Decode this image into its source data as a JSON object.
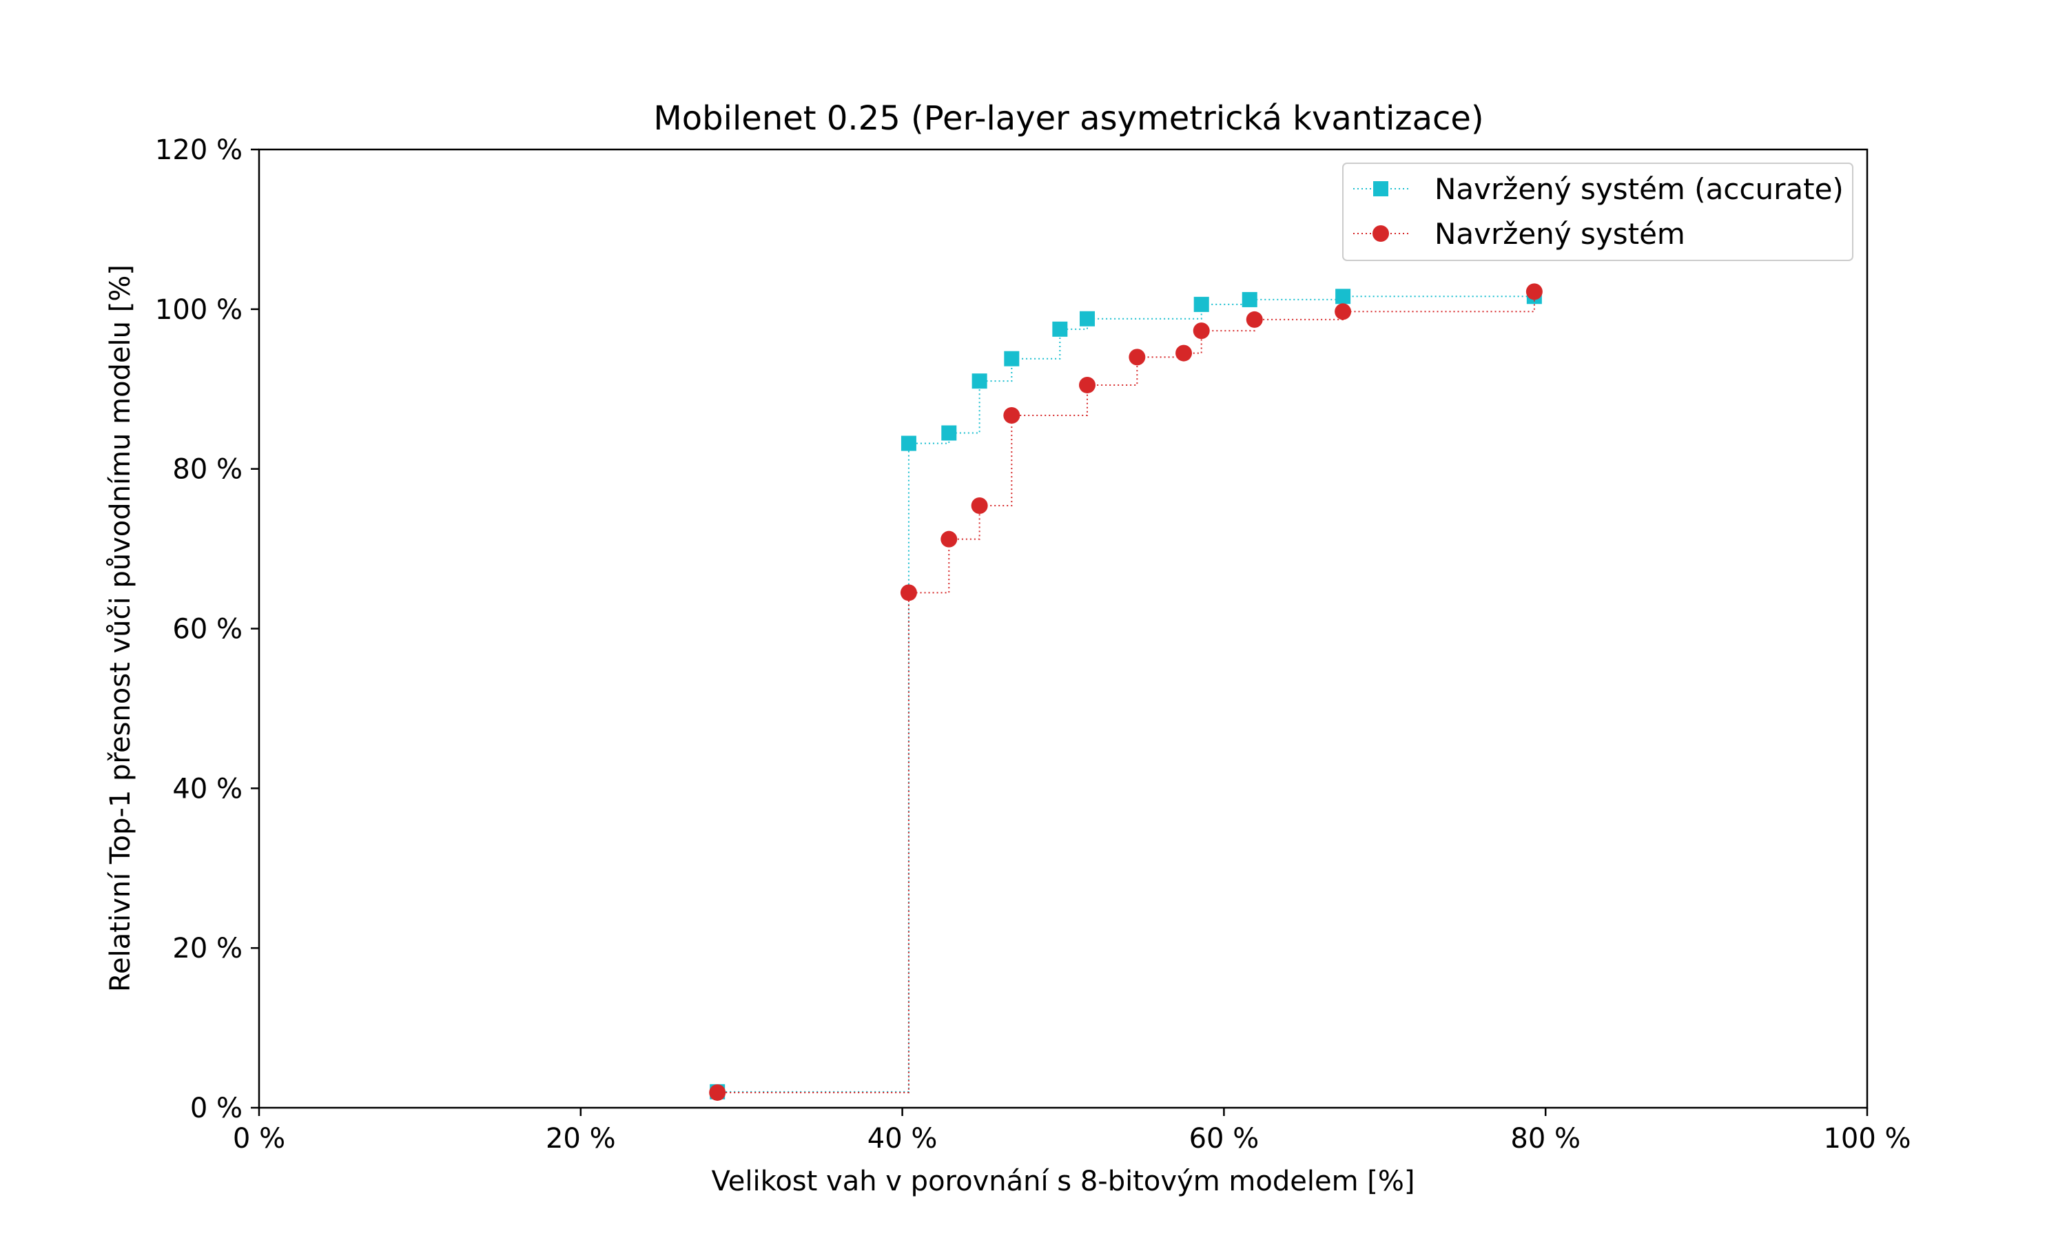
{
  "chart_data": {
    "type": "line",
    "title": "Mobilenet 0.25 (Per-layer asymetrická kvantizace)",
    "xlabel": "Velikost vah v porovnání s 8-bitovým modelem [%]",
    "ylabel": "Relativní Top-1 přesnost vůči původnímu modelu [%]",
    "xlim": [
      0,
      100
    ],
    "ylim": [
      0,
      120
    ],
    "xticks": [
      0,
      20,
      40,
      60,
      80,
      100
    ],
    "yticks": [
      0,
      20,
      40,
      60,
      80,
      100,
      120
    ],
    "xtick_labels": [
      "0 %",
      "20 %",
      "40 %",
      "60 %",
      "80 %",
      "100 %"
    ],
    "ytick_labels": [
      "0 %",
      "20 %",
      "40 %",
      "60 %",
      "80 %",
      "100 %",
      "120 %"
    ],
    "grid": false,
    "legend_position": "top-right",
    "step_style": "post",
    "series": [
      {
        "name": "Navržený systém (accurate)",
        "color": "#17becf",
        "marker": "square",
        "line_style": "dotted",
        "x": [
          28.5,
          40.4,
          42.9,
          44.8,
          46.8,
          49.8,
          51.5,
          58.6,
          61.6,
          67.4,
          79.3
        ],
        "y": [
          2.0,
          83.2,
          84.5,
          91.0,
          93.8,
          97.5,
          98.8,
          100.6,
          101.2,
          101.6,
          101.6
        ]
      },
      {
        "name": "Navržený systém",
        "color": "#d62728",
        "marker": "circle",
        "line_style": "dotted",
        "x": [
          28.5,
          40.4,
          42.9,
          44.8,
          46.8,
          51.5,
          54.6,
          57.5,
          58.6,
          61.9,
          67.4,
          79.3
        ],
        "y": [
          1.9,
          64.5,
          71.2,
          75.4,
          86.7,
          90.5,
          94.0,
          94.5,
          97.3,
          98.7,
          99.7,
          102.2
        ]
      }
    ]
  }
}
